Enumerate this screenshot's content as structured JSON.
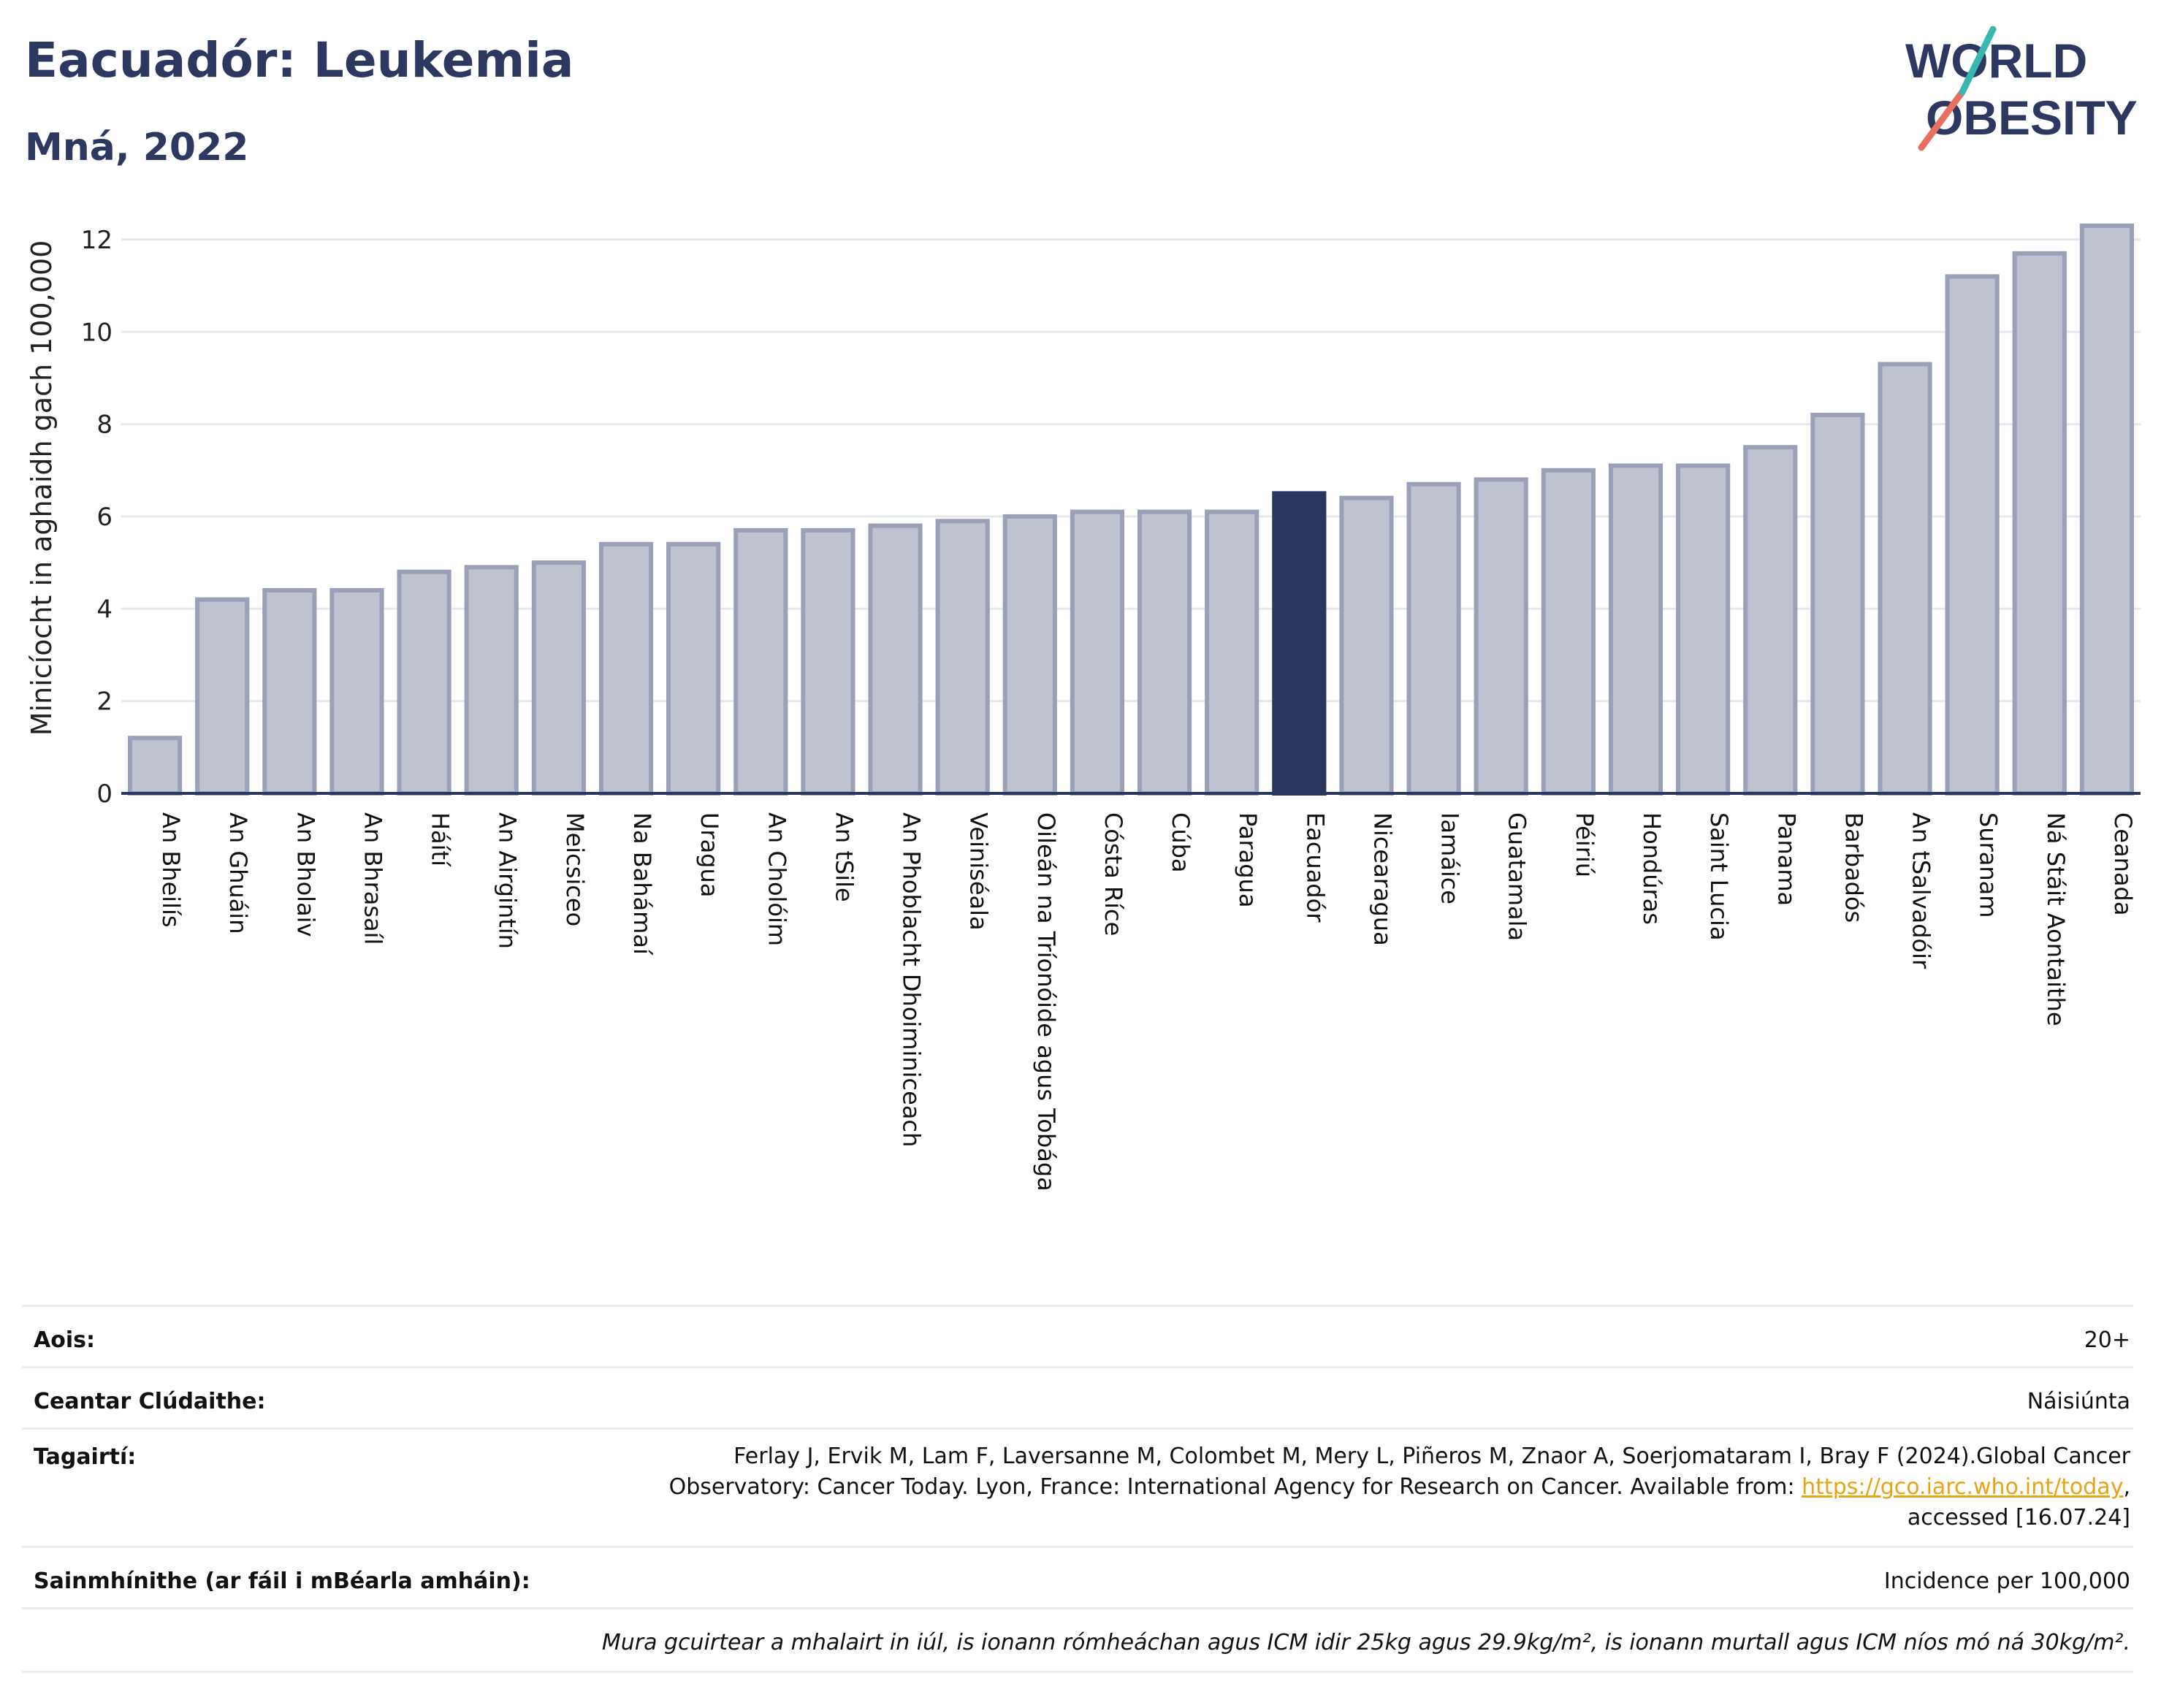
{
  "header": {
    "title": "Eacuadór: Leukemia",
    "subtitle": "Mná, 2022"
  },
  "logo": {
    "line1": "WORLD",
    "line2": "OBESITY"
  },
  "colors": {
    "bar": "#bfc3d0",
    "bar_stroke": "#9aa0b8",
    "highlight": "#2a3560",
    "grid": "#e6e8ee",
    "axis": "#2a3560"
  },
  "chart_data": {
    "type": "bar",
    "ylabel": "Minicíocht in aghaidh gach 100,000",
    "ylim": [
      0,
      12.6
    ],
    "yticks": [
      0,
      2,
      4,
      6,
      8,
      10,
      12
    ],
    "grid": true,
    "highlight": "Eacuadór",
    "categories": [
      "An Bheilís",
      "An Ghuáin",
      "An Bholaiv",
      "An Bhrasaíl",
      "Háítí",
      "An Airgintín",
      "Meicsiceo",
      "Na Bahámaí",
      "Uragua",
      "An Cholóim",
      "An tSile",
      "An Phoblacht Dhoiminiceach",
      "Veiniséala",
      "Oileán na Tríonóide agus Tobága",
      "Cósta Ríce",
      "Cúba",
      "Paragua",
      "Eacuadór",
      "Nicearagua",
      "Iamáice",
      "Guatamala",
      "Péiriú",
      "Hondúras",
      "Saint Lucia",
      "Panama",
      "Barbadós",
      "An tSalvadóir",
      "Suranam",
      "Ná Stáit Aontaithe",
      "Ceanada"
    ],
    "values": [
      1.2,
      4.2,
      4.4,
      4.4,
      4.8,
      4.9,
      5.0,
      5.4,
      5.4,
      5.7,
      5.7,
      5.8,
      5.9,
      6.0,
      6.1,
      6.1,
      6.1,
      6.5,
      6.4,
      6.7,
      6.8,
      7.0,
      7.1,
      7.1,
      7.5,
      8.2,
      9.3,
      11.2,
      11.7,
      12.3
    ]
  },
  "info": {
    "age_label": "Aois:",
    "age_value": "20+",
    "area_label": "Ceantar Clúdaithe:",
    "area_value": "Náisiúnta",
    "refs_label": "Tagairtí:",
    "refs_line1": "Ferlay J, Ervik M, Lam F, Laversanne M, Colombet M, Mery L, Piñeros M, Znaor A, Soerjomataram I, Bray F (2024).Global Cancer",
    "refs_line2": "Observatory: Cancer Today. Lyon, France: International Agency for Research on Cancer. Available from: ",
    "refs_link": "https://gco.iarc.who.int/today",
    "refs_line2_end": ",",
    "refs_line3": "accessed [16.07.24]",
    "defs_label": "Sainmhínithe (ar fáil i mBéarla amháin):",
    "defs_value": "Incidence per 100,000",
    "note": "Mura gcuirtear a mhalairt in iúl, is ionann rómheáchan agus ICM idir 25kg agus 29.9kg/m², is ionann murtall agus ICM níos mó ná 30kg/m²."
  }
}
